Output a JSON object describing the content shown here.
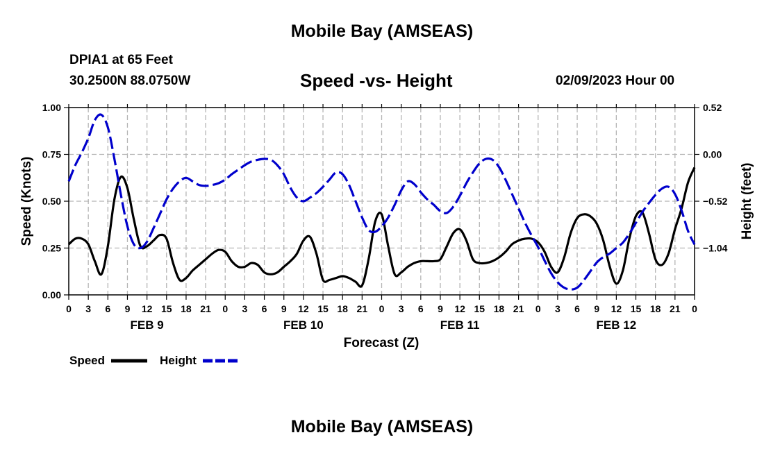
{
  "header": {
    "title_top": "Mobile Bay (AMSEAS)",
    "station": "DPIA1 at 65 Feet",
    "coords": "30.2500N  88.0750W",
    "subtitle": "Speed -vs- Height",
    "datetime": "02/09/2023 Hour 00",
    "title_bottom": "Mobile Bay (AMSEAS)"
  },
  "colors": {
    "speed": "#000000",
    "height": "#0000cc",
    "grid": "#b4b4b4"
  },
  "chart_data": {
    "type": "line",
    "title": "Speed -vs- Height",
    "xlabel": "Forecast (Z)",
    "ylabel_left": "Speed (Knots)",
    "ylabel_right": "Height (feet)",
    "x_range": [
      0,
      96
    ],
    "x_tick_step_hours": 3,
    "x_tick_labels": [
      "0",
      "3",
      "6",
      "9",
      "12",
      "15",
      "18",
      "21",
      "0",
      "3",
      "6",
      "9",
      "12",
      "15",
      "18",
      "21",
      "0",
      "3",
      "6",
      "9",
      "12",
      "15",
      "18",
      "21",
      "0",
      "3",
      "6",
      "9",
      "12",
      "15",
      "18",
      "21",
      "0"
    ],
    "day_labels": [
      {
        "label": "FEB 9",
        "hour": 12
      },
      {
        "label": "FEB 10",
        "hour": 36
      },
      {
        "label": "FEB 11",
        "hour": 60
      },
      {
        "label": "FEB 12",
        "hour": 84
      }
    ],
    "y_left": {
      "range": [
        0,
        1
      ],
      "ticks": [
        0,
        0.25,
        0.5,
        0.75,
        1.0
      ],
      "tick_labels": [
        "0.00",
        "0.25",
        "0.50",
        "0.75",
        "1.00"
      ]
    },
    "y_right": {
      "range": [
        -1.56,
        0.52
      ],
      "ticks": [
        -1.04,
        -0.52,
        0.0,
        0.52
      ],
      "tick_labels": [
        "−1.04",
        "−0.52",
        "0.00",
        "0.52"
      ]
    },
    "grid": true,
    "legend": {
      "position": "bottom-left",
      "items": [
        "Speed",
        "Height"
      ]
    },
    "series": [
      {
        "name": "Speed",
        "axis": "left",
        "style": "solid",
        "x": [
          0,
          1,
          2,
          3,
          4,
          5,
          6,
          7,
          8,
          9,
          10,
          11,
          12,
          13,
          14,
          15,
          16,
          17,
          18,
          19,
          20,
          21,
          22,
          23,
          24,
          25,
          26,
          27,
          28,
          29,
          30,
          31,
          32,
          33,
          34,
          35,
          36,
          37,
          38,
          39,
          40,
          41,
          42,
          43,
          44,
          45,
          46,
          47,
          48,
          49,
          50,
          51,
          52,
          53,
          54,
          55,
          56,
          57,
          58,
          59,
          60,
          61,
          62,
          63,
          64,
          65,
          66,
          67,
          68,
          69,
          70,
          71,
          72,
          73,
          74,
          75,
          76,
          77,
          78,
          79,
          80,
          81,
          82,
          83,
          84,
          85,
          86,
          87,
          88,
          89,
          90,
          91,
          92,
          93,
          94,
          95,
          96
        ],
        "values": [
          0.27,
          0.3,
          0.3,
          0.27,
          0.18,
          0.11,
          0.26,
          0.51,
          0.63,
          0.57,
          0.4,
          0.26,
          0.26,
          0.29,
          0.32,
          0.3,
          0.17,
          0.08,
          0.09,
          0.13,
          0.16,
          0.19,
          0.22,
          0.24,
          0.23,
          0.18,
          0.15,
          0.15,
          0.17,
          0.16,
          0.12,
          0.11,
          0.12,
          0.15,
          0.18,
          0.22,
          0.29,
          0.31,
          0.22,
          0.08,
          0.08,
          0.09,
          0.1,
          0.09,
          0.07,
          0.05,
          0.19,
          0.39,
          0.43,
          0.26,
          0.11,
          0.12,
          0.15,
          0.17,
          0.18,
          0.18,
          0.18,
          0.19,
          0.26,
          0.33,
          0.35,
          0.29,
          0.19,
          0.17,
          0.17,
          0.18,
          0.2,
          0.23,
          0.27,
          0.29,
          0.3,
          0.3,
          0.28,
          0.23,
          0.15,
          0.12,
          0.2,
          0.33,
          0.41,
          0.43,
          0.42,
          0.38,
          0.29,
          0.15,
          0.06,
          0.13,
          0.3,
          0.42,
          0.44,
          0.33,
          0.19,
          0.16,
          0.22,
          0.35,
          0.46,
          0.6,
          0.68
        ]
      },
      {
        "name": "Height",
        "axis": "right",
        "style": "dashed",
        "x": [
          0,
          1,
          2,
          3,
          4,
          5,
          6,
          7,
          8,
          9,
          10,
          11,
          12,
          13,
          14,
          15,
          16,
          17,
          18,
          19,
          20,
          21,
          22,
          23,
          24,
          25,
          26,
          27,
          28,
          29,
          30,
          31,
          32,
          33,
          34,
          35,
          36,
          37,
          38,
          39,
          40,
          41,
          42,
          43,
          44,
          45,
          46,
          47,
          48,
          49,
          50,
          51,
          52,
          53,
          54,
          55,
          56,
          57,
          58,
          59,
          60,
          61,
          62,
          63,
          64,
          65,
          66,
          67,
          68,
          69,
          70,
          71,
          72,
          73,
          74,
          75,
          76,
          77,
          78,
          79,
          80,
          81,
          82,
          83,
          84,
          85,
          86,
          87,
          88,
          89,
          90,
          91,
          92,
          93,
          94,
          95,
          96
        ],
        "values": [
          -0.3,
          -0.12,
          0.02,
          0.18,
          0.38,
          0.44,
          0.3,
          -0.05,
          -0.45,
          -0.8,
          -1.0,
          -1.04,
          -0.97,
          -0.82,
          -0.66,
          -0.5,
          -0.38,
          -0.3,
          -0.26,
          -0.3,
          -0.34,
          -0.35,
          -0.34,
          -0.32,
          -0.28,
          -0.22,
          -0.17,
          -0.12,
          -0.08,
          -0.06,
          -0.05,
          -0.06,
          -0.12,
          -0.22,
          -0.37,
          -0.48,
          -0.52,
          -0.48,
          -0.43,
          -0.36,
          -0.28,
          -0.2,
          -0.22,
          -0.34,
          -0.52,
          -0.7,
          -0.84,
          -0.86,
          -0.8,
          -0.7,
          -0.56,
          -0.4,
          -0.3,
          -0.33,
          -0.42,
          -0.5,
          -0.56,
          -0.63,
          -0.65,
          -0.58,
          -0.46,
          -0.32,
          -0.2,
          -0.1,
          -0.05,
          -0.06,
          -0.14,
          -0.28,
          -0.44,
          -0.6,
          -0.76,
          -0.9,
          -1.03,
          -1.18,
          -1.32,
          -1.42,
          -1.48,
          -1.5,
          -1.48,
          -1.4,
          -1.3,
          -1.2,
          -1.14,
          -1.1,
          -1.04,
          -0.98,
          -0.88,
          -0.76,
          -0.64,
          -0.54,
          -0.45,
          -0.38,
          -0.36,
          -0.44,
          -0.62,
          -0.85,
          -1.0
        ]
      }
    ]
  }
}
